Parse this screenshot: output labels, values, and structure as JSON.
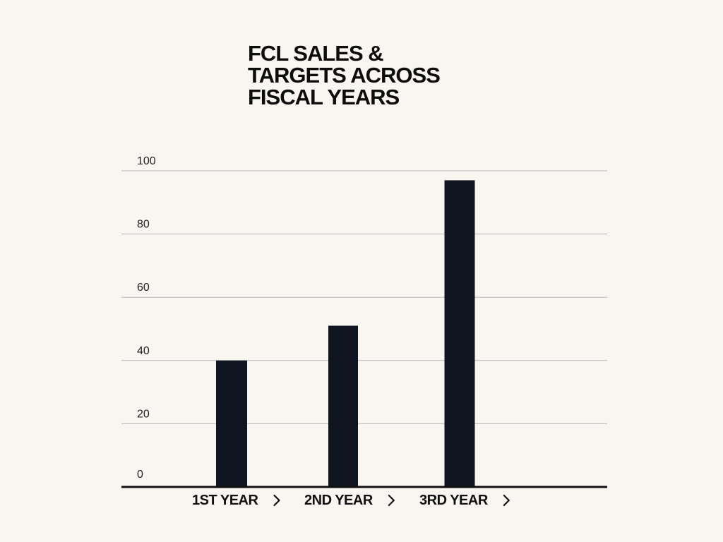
{
  "title_lines": [
    "FCL SALES &",
    "TARGETS ACROSS",
    "FISCAL YEARS"
  ],
  "colors": {
    "background": "#f9f6f1",
    "bar": "#0e1520",
    "gridline": "#b5b5b5",
    "axis": "#111111"
  },
  "chart_data": {
    "type": "bar",
    "title": "FCL SALES & TARGETS ACROSS FISCAL YEARS",
    "categories": [
      "1ST YEAR",
      "2ND YEAR",
      "3RD YEAR"
    ],
    "category_marker": "chevron-right-icon",
    "values": [
      40,
      51,
      97
    ],
    "ylim": [
      0,
      100
    ],
    "yticks": [
      0,
      20,
      40,
      60,
      80,
      100
    ],
    "grid": true,
    "xlabel": "",
    "ylabel": ""
  }
}
